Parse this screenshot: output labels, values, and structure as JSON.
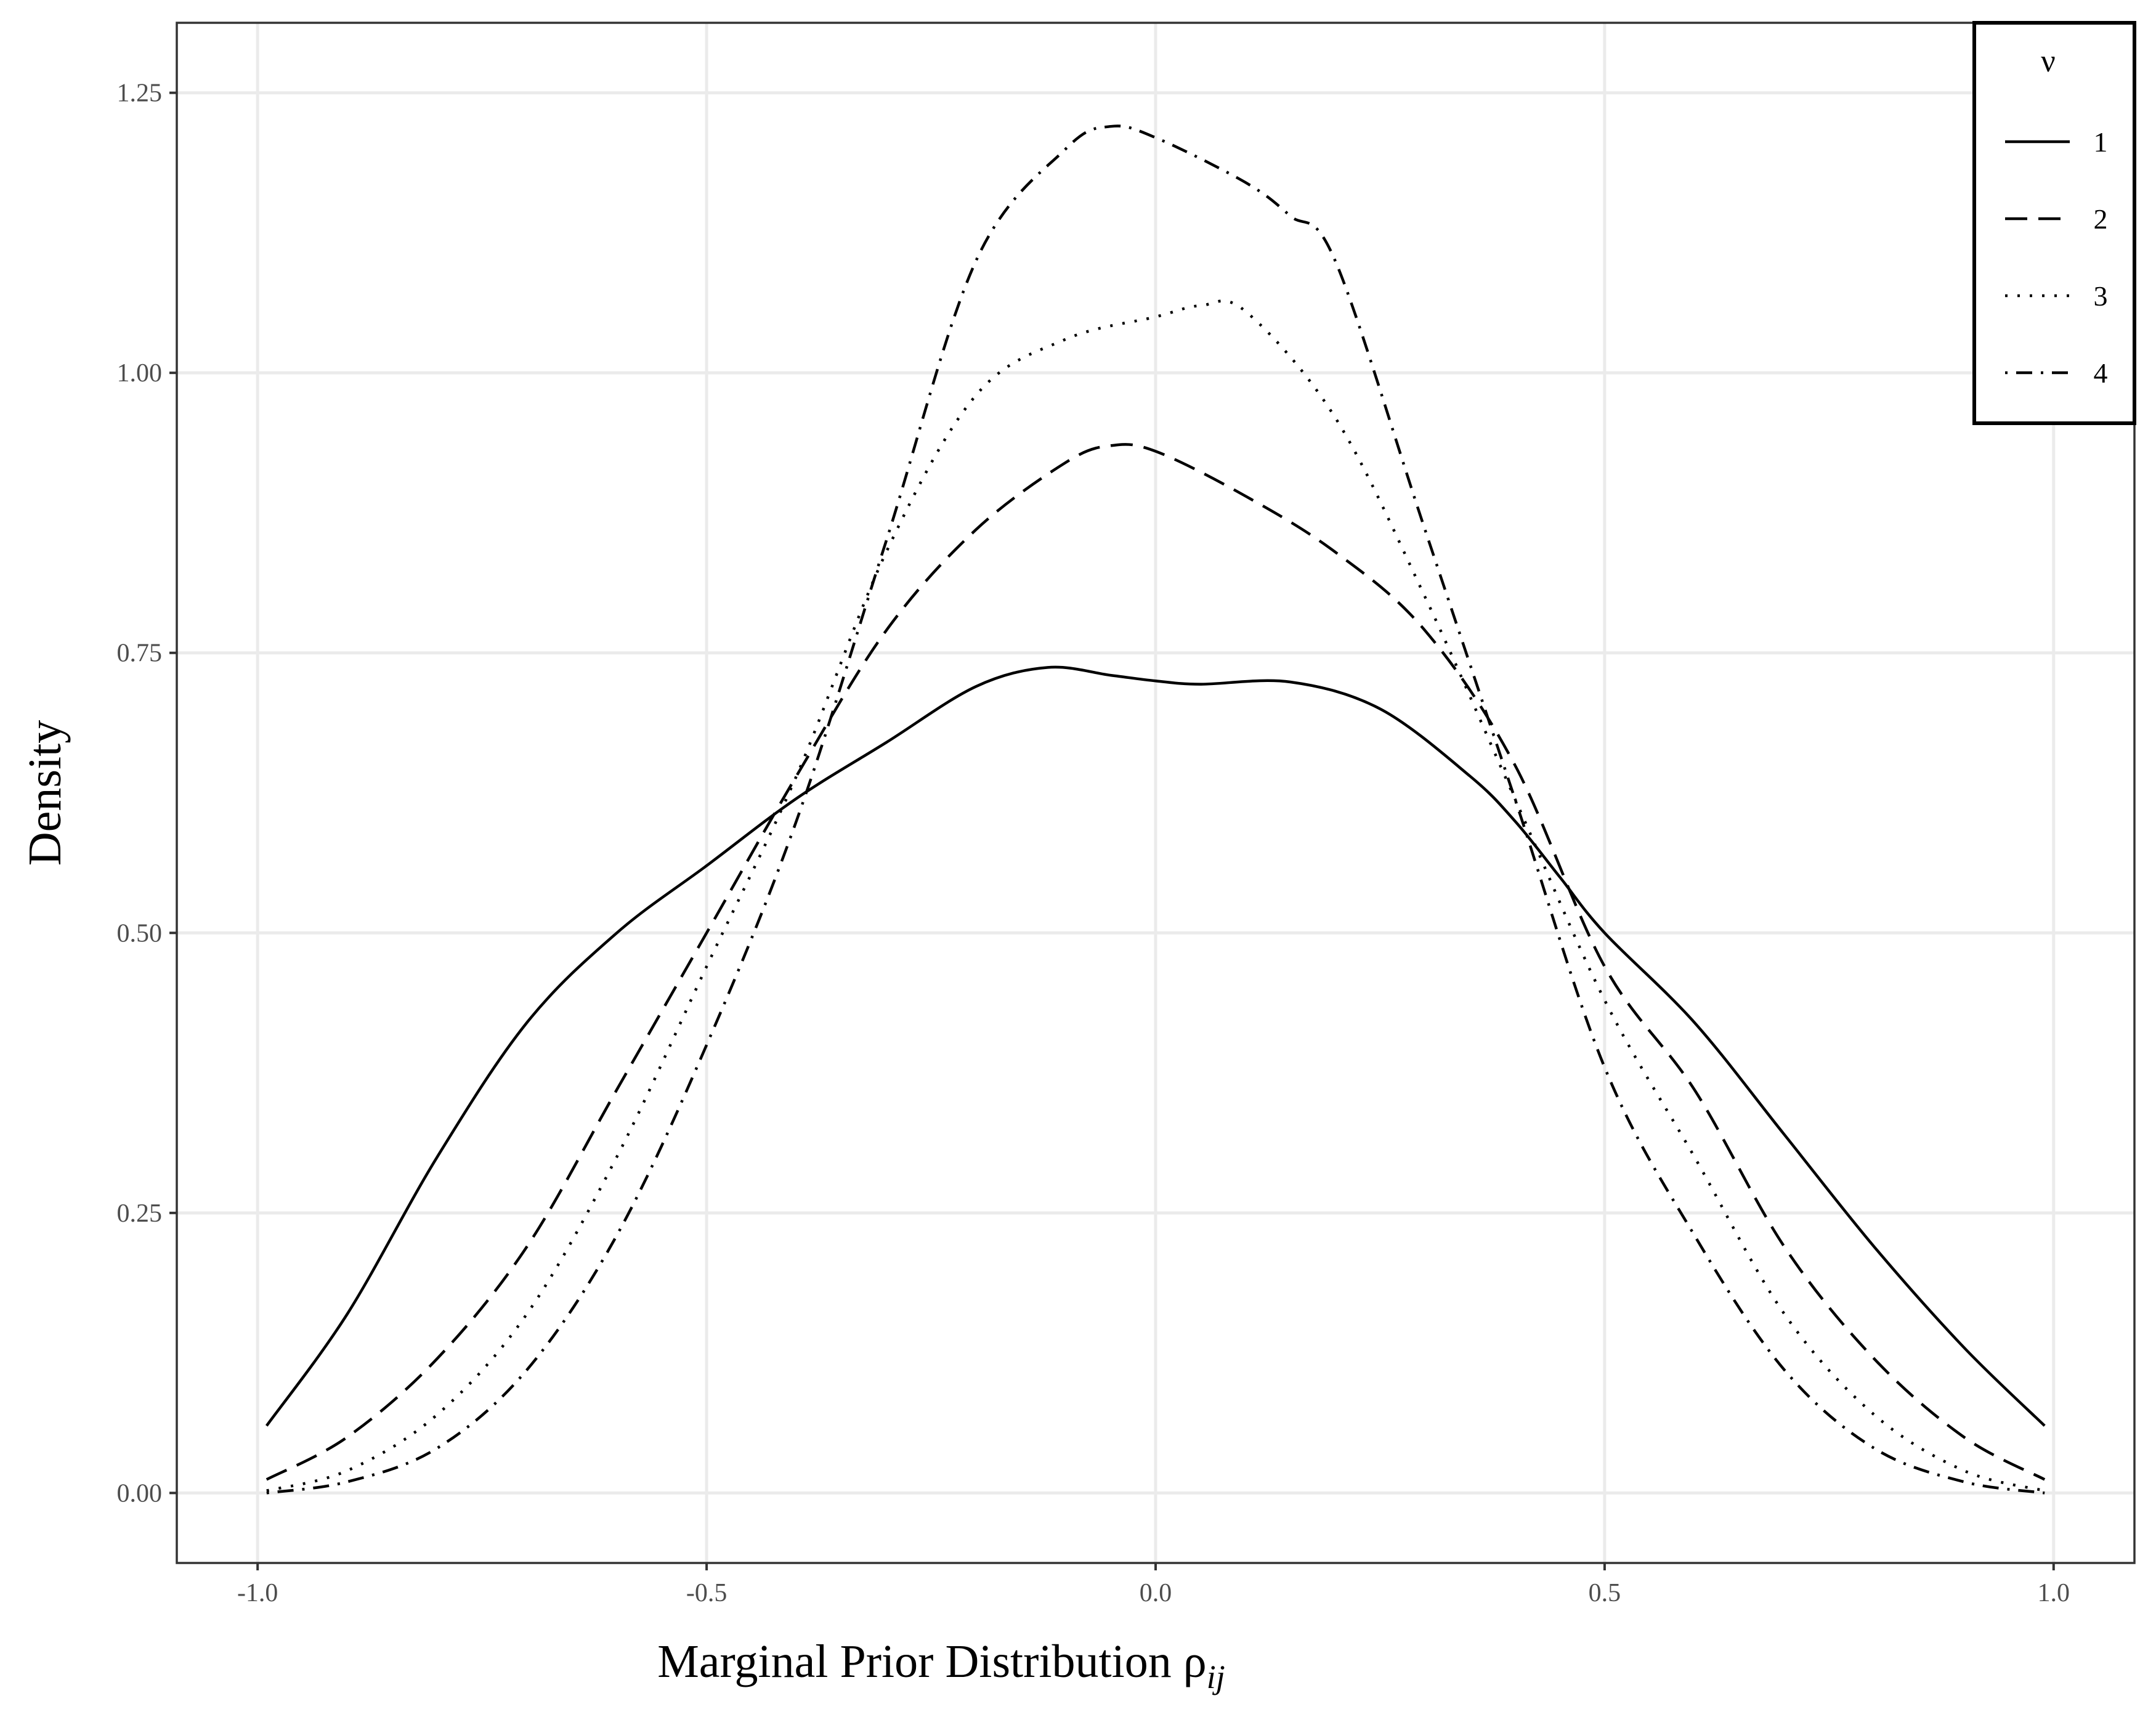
{
  "chart_data": {
    "type": "line",
    "xlabel_main": "Marginal Prior Distribution ",
    "xlabel_symbol": "ρ",
    "xlabel_subscript": "ij",
    "ylabel": "Density",
    "xlim": [
      -1.09,
      1.09
    ],
    "ylim": [
      -0.0625,
      1.3125
    ],
    "grid": true,
    "legend": {
      "title": "ν",
      "placement": "top-right"
    },
    "x_ticks": [
      -1.0,
      -0.5,
      0.0,
      0.5,
      1.0
    ],
    "x_tick_labels": [
      "-1.0",
      "-0.5",
      "0.0",
      "0.5",
      "1.0"
    ],
    "y_ticks": [
      0,
      0.25,
      0.5,
      0.75,
      1.0,
      1.25
    ],
    "y_tick_labels": [
      "0.00",
      "0.25",
      "0.50",
      "0.75",
      "1.00",
      "1.25"
    ],
    "series": [
      {
        "name": "1",
        "dash": "solid",
        "x": [
          -0.99,
          -0.9,
          -0.8,
          -0.7,
          -0.6,
          -0.5,
          -0.4,
          -0.3,
          -0.2,
          -0.12,
          -0.05,
          0.0,
          0.05,
          0.15,
          0.25,
          0.35,
          0.4,
          0.45,
          0.5,
          0.6,
          0.7,
          0.8,
          0.9,
          0.99
        ],
        "y": [
          0.06,
          0.16,
          0.3,
          0.42,
          0.5,
          0.56,
          0.62,
          0.67,
          0.72,
          0.737,
          0.73,
          0.725,
          0.722,
          0.724,
          0.7,
          0.64,
          0.6,
          0.55,
          0.5,
          0.42,
          0.32,
          0.22,
          0.13,
          0.06
        ]
      },
      {
        "name": "2",
        "dash": "dashed",
        "x": [
          -0.99,
          -0.9,
          -0.8,
          -0.7,
          -0.6,
          -0.5,
          -0.4,
          -0.3,
          -0.2,
          -0.1,
          -0.05,
          0.0,
          0.1,
          0.2,
          0.3,
          0.4,
          0.5,
          0.6,
          0.7,
          0.8,
          0.9,
          0.99
        ],
        "y": [
          0.012,
          0.05,
          0.12,
          0.22,
          0.36,
          0.5,
          0.64,
          0.77,
          0.86,
          0.92,
          0.935,
          0.93,
          0.89,
          0.84,
          0.77,
          0.65,
          0.47,
          0.36,
          0.22,
          0.12,
          0.05,
          0.012
        ]
      },
      {
        "name": "3",
        "dash": "dotted",
        "x": [
          -0.99,
          -0.9,
          -0.8,
          -0.7,
          -0.6,
          -0.5,
          -0.4,
          -0.3,
          -0.2,
          -0.1,
          0.0,
          0.05,
          0.1,
          0.2,
          0.3,
          0.4,
          0.5,
          0.6,
          0.7,
          0.8,
          0.9,
          0.99
        ],
        "y": [
          0.002,
          0.02,
          0.07,
          0.16,
          0.3,
          0.47,
          0.64,
          0.84,
          0.98,
          1.03,
          1.05,
          1.06,
          1.055,
          0.96,
          0.8,
          0.62,
          0.44,
          0.3,
          0.16,
          0.07,
          0.02,
          0.002
        ]
      },
      {
        "name": "4",
        "dash": "dotdash",
        "x": [
          -0.99,
          -0.9,
          -0.8,
          -0.7,
          -0.6,
          -0.5,
          -0.4,
          -0.3,
          -0.2,
          -0.1,
          -0.05,
          0.0,
          0.1,
          0.15,
          0.2,
          0.3,
          0.4,
          0.5,
          0.6,
          0.7,
          0.8,
          0.9,
          0.99
        ],
        "y": [
          0.0,
          0.01,
          0.04,
          0.11,
          0.23,
          0.4,
          0.6,
          0.85,
          1.1,
          1.2,
          1.22,
          1.21,
          1.17,
          1.14,
          1.1,
          0.86,
          0.62,
          0.38,
          0.23,
          0.11,
          0.04,
          0.01,
          0.0
        ]
      }
    ]
  }
}
